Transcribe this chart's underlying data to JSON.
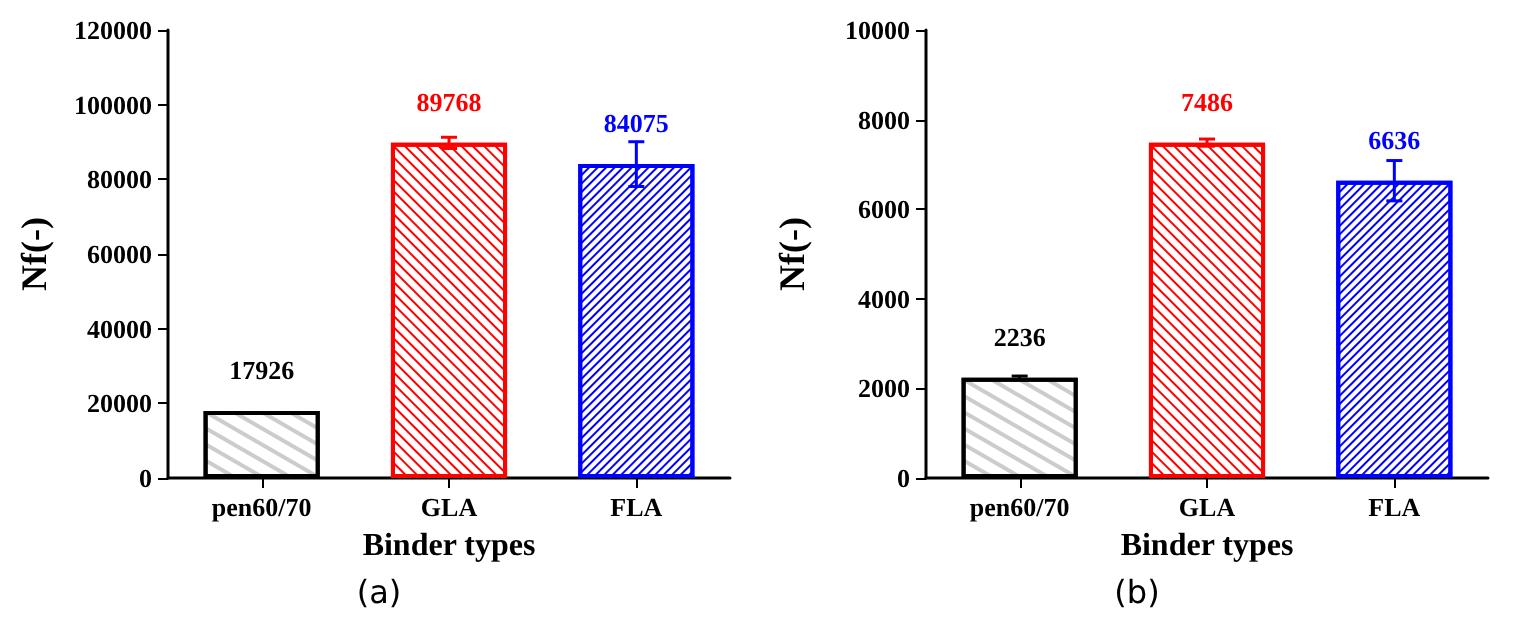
{
  "chart_data": [
    {
      "type": "bar",
      "categories": [
        "pen60/70",
        "GLA",
        "FLA"
      ],
      "values": [
        17926,
        89768,
        84075
      ],
      "colors": [
        "#000000",
        "#ff0000",
        "#0000ff"
      ],
      "errors": [
        null,
        1500,
        6000
      ],
      "data_labels": true,
      "xlabel": "Binder types",
      "ylabel": "Nf(-)",
      "ylim": [
        0,
        120000
      ],
      "yticks": [
        0,
        20000,
        40000,
        60000,
        80000,
        100000,
        120000
      ],
      "grid": false,
      "annotations": [
        "(a)"
      ]
    },
    {
      "type": "bar",
      "categories": [
        "pen60/70",
        "GLA",
        "FLA"
      ],
      "values": [
        2236,
        7486,
        6636
      ],
      "colors": [
        "#000000",
        "#ff0000",
        "#0000ff"
      ],
      "errors": [
        40,
        80,
        450
      ],
      "data_labels": true,
      "xlabel": "Binder types",
      "ylabel": "Nf(-)",
      "ylim": [
        0,
        10000
      ],
      "yticks": [
        0,
        2000,
        4000,
        6000,
        8000,
        10000
      ],
      "grid": false,
      "annotations": [
        "(b)"
      ]
    }
  ]
}
